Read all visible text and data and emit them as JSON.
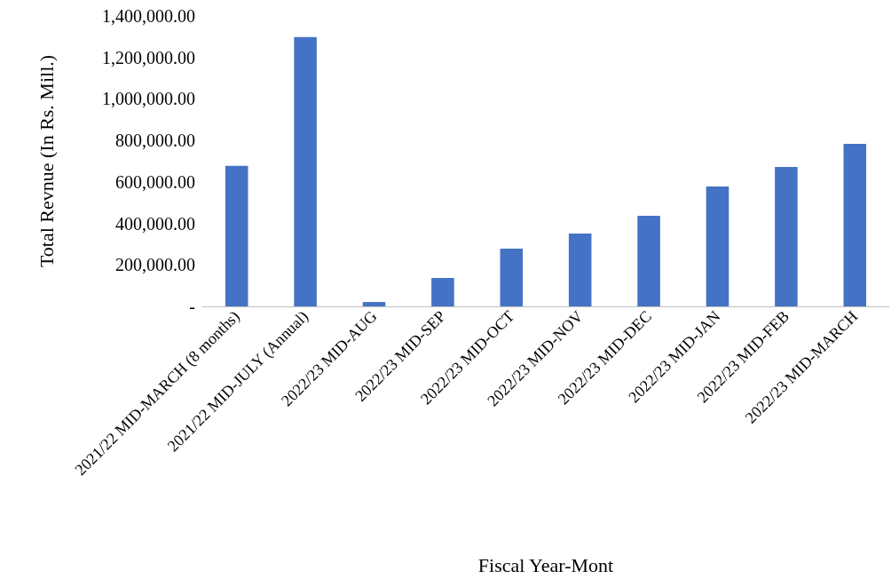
{
  "chart_data": {
    "type": "bar",
    "xlabel": "Fiscal Year-Mont",
    "ylabel": "Total Revnue (In Rs. Mill.)",
    "categories": [
      "2021/22 MID-MARCH (8 months)",
      "2021/22 MID-JULY (Annual)",
      "2022/23 MID-AUG",
      "2022/23 MID-SEP",
      "2022/23 MID-OCT",
      "2022/23 MID-NOV",
      "2022/23 MID-DEC",
      "2022/23 MID-JAN",
      "2022/23 MID-FEB",
      "2022/23 MID-MARCH"
    ],
    "values": [
      677000,
      1298000,
      21000,
      137000,
      278000,
      351000,
      437000,
      578000,
      672000,
      784000
    ],
    "color": "#4472c4",
    "ylim": [
      0,
      1400000
    ],
    "yticks": [
      {
        "value": 0,
        "label": "-"
      },
      {
        "value": 200000,
        "label": "200,000.00"
      },
      {
        "value": 400000,
        "label": "400,000.00"
      },
      {
        "value": 600000,
        "label": "600,000.00"
      },
      {
        "value": 800000,
        "label": "800,000.00"
      },
      {
        "value": 1000000,
        "label": "1,000,000.00"
      },
      {
        "value": 1200000,
        "label": "1,200,000.00"
      },
      {
        "value": 1400000,
        "label": "1,400,000.00"
      }
    ],
    "grid": false
  }
}
